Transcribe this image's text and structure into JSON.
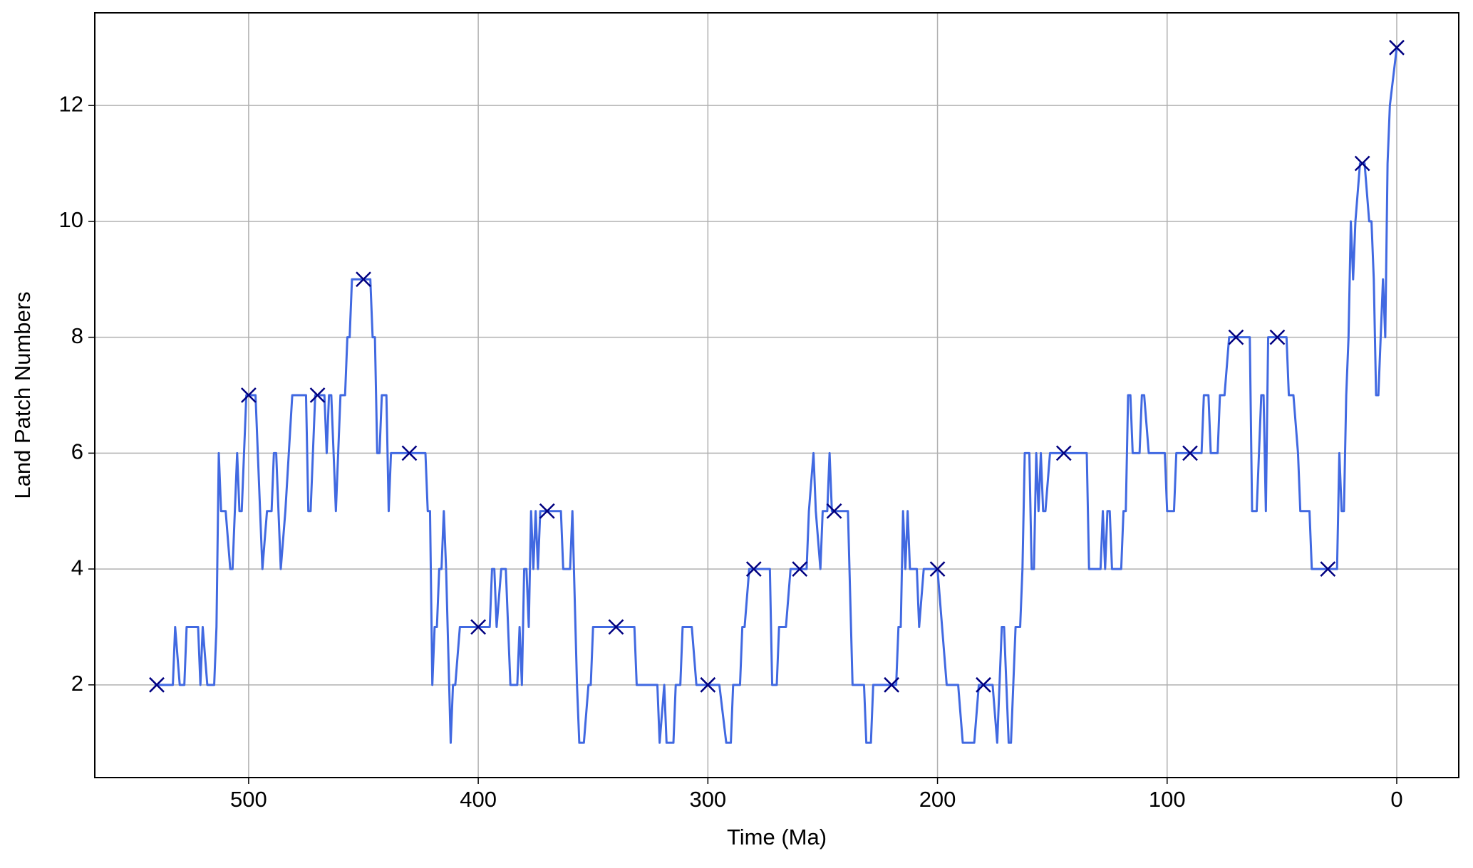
{
  "chart_data": {
    "type": "line",
    "xlabel": "Time (Ma)",
    "ylabel": "Land Patch Numbers",
    "xlim": [
      567,
      -27
    ],
    "ylim": [
      0.4,
      13.6
    ],
    "xticks": [
      500,
      400,
      300,
      200,
      100,
      0
    ],
    "yticks": [
      2,
      4,
      6,
      8,
      10,
      12
    ],
    "grid": true,
    "color": "#4169e1",
    "x": [
      541,
      533,
      532,
      530,
      528,
      527,
      522,
      521,
      520,
      518,
      515,
      514,
      513,
      512,
      510,
      508,
      507,
      505,
      504,
      503,
      501,
      497,
      496,
      494,
      492,
      490,
      489,
      488,
      486,
      484,
      481,
      475,
      474,
      473,
      471,
      467,
      466,
      465,
      464,
      462,
      460,
      458,
      457,
      456,
      455,
      447,
      446,
      445,
      444,
      443,
      442,
      440,
      439,
      438,
      423,
      422,
      421,
      420,
      419,
      418,
      417,
      416,
      415,
      414,
      412,
      411,
      410,
      408,
      395,
      394,
      393,
      392,
      390,
      388,
      386,
      383,
      382,
      381,
      380,
      379,
      378,
      377,
      376,
      375,
      374,
      373,
      364,
      363,
      360,
      359,
      357,
      356,
      354,
      352,
      351,
      350,
      332,
      331,
      322,
      321,
      319,
      318,
      315,
      314,
      312,
      311,
      307,
      305,
      295,
      292,
      290,
      289,
      286,
      285,
      284,
      282,
      273,
      272,
      270,
      269,
      266,
      264,
      257,
      256,
      254,
      253,
      251,
      250,
      248,
      247,
      246,
      239,
      237,
      232,
      231,
      229,
      228,
      218,
      217,
      216,
      215,
      214,
      213,
      212,
      209,
      208,
      206,
      200,
      196,
      191,
      189,
      184,
      182,
      176,
      174,
      172,
      171,
      169,
      168,
      166,
      164,
      163,
      162,
      160,
      159,
      158,
      157,
      156,
      155,
      154,
      153,
      151,
      135,
      134,
      129,
      128,
      127,
      126,
      125,
      124,
      120,
      119,
      118,
      117,
      116,
      115,
      112,
      111,
      110,
      108,
      101,
      100,
      97,
      96,
      85,
      84,
      82,
      81,
      78,
      77,
      75,
      73,
      64,
      63,
      61,
      59,
      58,
      57,
      56,
      48,
      47,
      45,
      43,
      42,
      38,
      37,
      26,
      25,
      24,
      23,
      22,
      21,
      20,
      19,
      18,
      16,
      14,
      12,
      11,
      10,
      9,
      8,
      7,
      6,
      5,
      4,
      3,
      0
    ],
    "values": [
      2,
      2,
      3,
      2,
      2,
      3,
      3,
      2,
      3,
      2,
      2,
      3,
      6,
      5,
      5,
      4,
      4,
      6,
      5,
      5,
      7,
      7,
      6,
      4,
      5,
      5,
      6,
      6,
      4,
      5,
      7,
      7,
      5,
      5,
      7,
      7,
      6,
      7,
      7,
      5,
      7,
      7,
      8,
      8,
      9,
      9,
      8,
      8,
      6,
      6,
      7,
      7,
      5,
      6,
      6,
      5,
      5,
      2,
      3,
      3,
      4,
      4,
      5,
      4,
      1,
      2,
      2,
      3,
      3,
      4,
      4,
      3,
      4,
      4,
      2,
      2,
      3,
      2,
      4,
      4,
      3,
      5,
      4,
      5,
      4,
      5,
      5,
      4,
      4,
      5,
      2,
      1,
      1,
      2,
      2,
      3,
      3,
      2,
      2,
      1,
      2,
      1,
      1,
      2,
      2,
      3,
      3,
      2,
      2,
      1,
      1,
      2,
      2,
      3,
      3,
      4,
      4,
      2,
      2,
      3,
      3,
      4,
      4,
      5,
      6,
      5,
      4,
      5,
      5,
      6,
      5,
      5,
      2,
      2,
      1,
      1,
      2,
      2,
      3,
      3,
      5,
      4,
      5,
      4,
      4,
      3,
      4,
      4,
      2,
      2,
      1,
      1,
      2,
      2,
      1,
      3,
      3,
      1,
      1,
      3,
      3,
      4,
      6,
      6,
      4,
      4,
      6,
      5,
      6,
      5,
      5,
      6,
      6,
      4,
      4,
      5,
      4,
      5,
      5,
      4,
      4,
      5,
      5,
      7,
      7,
      6,
      6,
      7,
      7,
      6,
      6,
      5,
      5,
      6,
      6,
      7,
      7,
      6,
      6,
      7,
      7,
      8,
      8,
      5,
      5,
      7,
      7,
      5,
      8,
      8,
      7,
      7,
      6,
      5,
      5,
      4,
      4,
      6,
      5,
      5,
      7,
      8,
      10,
      9,
      10,
      11,
      11,
      10,
      10,
      9,
      7,
      7,
      8,
      9,
      8,
      11,
      12,
      13
    ],
    "markers": {
      "color": "#000080",
      "x": [
        540,
        500,
        470,
        450,
        430,
        400,
        370,
        340,
        300,
        280,
        260,
        245,
        220,
        200,
        180,
        145,
        90,
        70,
        52,
        30,
        15,
        0
      ],
      "values": [
        2,
        7,
        7,
        9,
        6,
        3,
        5,
        3,
        2,
        4,
        4,
        5,
        2,
        4,
        2,
        6,
        6,
        8,
        8,
        4,
        11,
        13
      ]
    }
  }
}
